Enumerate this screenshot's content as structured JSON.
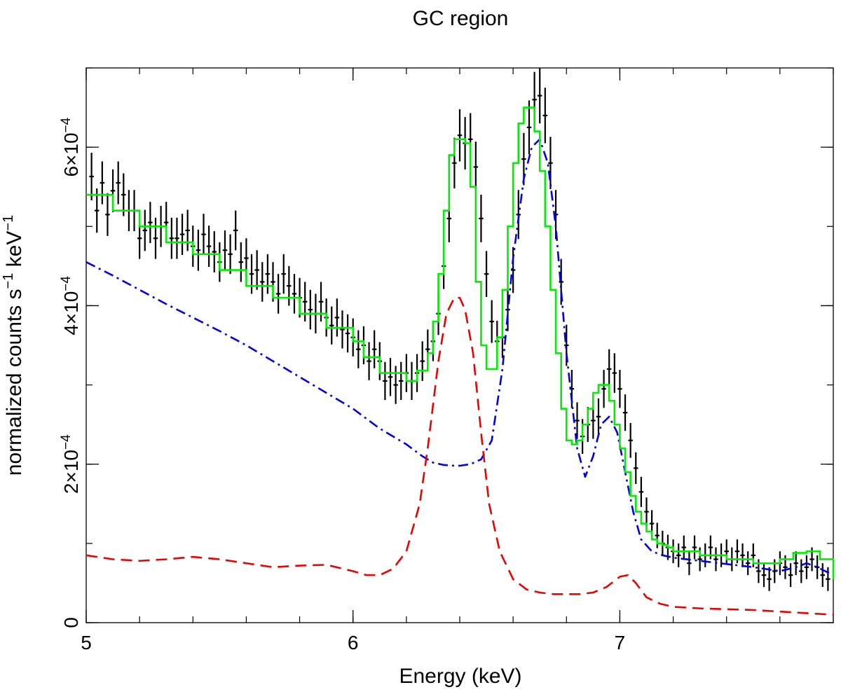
{
  "chart_data": {
    "type": "line",
    "title": "GC region",
    "xlabel": "Energy (keV)",
    "ylabel": "normalized counts s",
    "ylabel_sup1": "−1",
    "ylabel_mid": " keV",
    "ylabel_sup2": "−1",
    "xlim": [
      5.0,
      7.8
    ],
    "ylim": [
      0,
      0.0007
    ],
    "x_ticks": [
      {
        "value": 5,
        "label": "5"
      },
      {
        "value": 6,
        "label": "6"
      },
      {
        "value": 7,
        "label": "7"
      }
    ],
    "x_minor_step": 0.2,
    "y_ticks": [
      {
        "value": 0,
        "label": "0",
        "exp": ""
      },
      {
        "value": 0.0002,
        "label": "2×10",
        "exp": "−4"
      },
      {
        "value": 0.0004,
        "label": "4×10",
        "exp": "−4"
      },
      {
        "value": 0.0006,
        "label": "6×10",
        "exp": "−4"
      }
    ],
    "y_minor_step": 0.0001,
    "colors": {
      "data": "#000000",
      "total_model": "#00ee00",
      "thermal_component": "#0000ee",
      "neutral_component": "#ee0000"
    },
    "series": [
      {
        "name": "data",
        "style": "errorbars",
        "xerr": 0.0085,
        "points": [
          [
            5.02,
            5.63,
            0.3
          ],
          [
            5.04,
            5.2,
            0.28
          ],
          [
            5.06,
            5.55,
            0.27
          ],
          [
            5.08,
            5.15,
            0.27
          ],
          [
            5.1,
            5.45,
            0.27
          ],
          [
            5.12,
            5.55,
            0.27
          ],
          [
            5.14,
            5.4,
            0.27
          ],
          [
            5.16,
            5.2,
            0.26
          ],
          [
            5.18,
            5.2,
            0.26
          ],
          [
            5.2,
            4.85,
            0.26
          ],
          [
            5.22,
            4.95,
            0.26
          ],
          [
            5.24,
            5.05,
            0.26
          ],
          [
            5.26,
            4.85,
            0.26
          ],
          [
            5.28,
            5.0,
            0.26
          ],
          [
            5.3,
            5.05,
            0.26
          ],
          [
            5.32,
            4.85,
            0.26
          ],
          [
            5.34,
            4.85,
            0.26
          ],
          [
            5.36,
            4.9,
            0.26
          ],
          [
            5.38,
            4.95,
            0.26
          ],
          [
            5.4,
            4.75,
            0.26
          ],
          [
            5.42,
            4.7,
            0.26
          ],
          [
            5.44,
            4.9,
            0.26
          ],
          [
            5.46,
            4.75,
            0.26
          ],
          [
            5.48,
            4.68,
            0.26
          ],
          [
            5.5,
            4.55,
            0.25
          ],
          [
            5.52,
            4.7,
            0.25
          ],
          [
            5.54,
            4.65,
            0.25
          ],
          [
            5.56,
            4.95,
            0.25
          ],
          [
            5.58,
            4.55,
            0.25
          ],
          [
            5.6,
            4.6,
            0.25
          ],
          [
            5.62,
            4.4,
            0.25
          ],
          [
            5.64,
            4.45,
            0.25
          ],
          [
            5.66,
            4.3,
            0.25
          ],
          [
            5.68,
            4.4,
            0.25
          ],
          [
            5.7,
            4.3,
            0.25
          ],
          [
            5.72,
            4.15,
            0.25
          ],
          [
            5.74,
            4.4,
            0.25
          ],
          [
            5.76,
            4.25,
            0.25
          ],
          [
            5.78,
            4.15,
            0.25
          ],
          [
            5.8,
            4.1,
            0.25
          ],
          [
            5.82,
            4.05,
            0.25
          ],
          [
            5.84,
            3.95,
            0.25
          ],
          [
            5.86,
            3.9,
            0.25
          ],
          [
            5.88,
            4.05,
            0.25
          ],
          [
            5.9,
            3.85,
            0.24
          ],
          [
            5.92,
            3.75,
            0.24
          ],
          [
            5.94,
            3.85,
            0.24
          ],
          [
            5.96,
            3.7,
            0.24
          ],
          [
            5.98,
            3.65,
            0.24
          ],
          [
            6.0,
            3.6,
            0.24
          ],
          [
            6.02,
            3.45,
            0.24
          ],
          [
            6.04,
            3.5,
            0.24
          ],
          [
            6.06,
            3.3,
            0.24
          ],
          [
            6.08,
            3.45,
            0.24
          ],
          [
            6.1,
            3.3,
            0.24
          ],
          [
            6.12,
            3.05,
            0.24
          ],
          [
            6.14,
            3.1,
            0.24
          ],
          [
            6.16,
            3.0,
            0.24
          ],
          [
            6.18,
            3.05,
            0.24
          ],
          [
            6.2,
            3.15,
            0.24
          ],
          [
            6.22,
            3.05,
            0.24
          ],
          [
            6.24,
            3.15,
            0.24
          ],
          [
            6.26,
            3.3,
            0.25
          ],
          [
            6.28,
            3.45,
            0.25
          ],
          [
            6.3,
            3.55,
            0.25
          ],
          [
            6.32,
            3.9,
            0.27
          ],
          [
            6.34,
            4.5,
            0.29
          ],
          [
            6.36,
            5.1,
            0.3
          ],
          [
            6.38,
            5.8,
            0.32
          ],
          [
            6.4,
            6.15,
            0.33
          ],
          [
            6.42,
            6.05,
            0.33
          ],
          [
            6.44,
            6.1,
            0.33
          ],
          [
            6.46,
            5.75,
            0.32
          ],
          [
            6.48,
            5.1,
            0.3
          ],
          [
            6.5,
            4.4,
            0.29
          ],
          [
            6.52,
            3.8,
            0.27
          ],
          [
            6.54,
            3.55,
            0.26
          ],
          [
            6.56,
            3.6,
            0.26
          ],
          [
            6.58,
            3.95,
            0.27
          ],
          [
            6.6,
            4.45,
            0.29
          ],
          [
            6.62,
            5.15,
            0.31
          ],
          [
            6.64,
            5.85,
            0.33
          ],
          [
            6.66,
            6.25,
            0.34
          ],
          [
            6.68,
            6.6,
            0.35
          ],
          [
            6.7,
            6.65,
            0.35
          ],
          [
            6.72,
            6.4,
            0.35
          ],
          [
            6.74,
            5.8,
            0.33
          ],
          [
            6.76,
            5.15,
            0.31
          ],
          [
            6.78,
            4.3,
            0.29
          ],
          [
            6.8,
            3.5,
            0.26
          ],
          [
            6.82,
            2.95,
            0.24
          ],
          [
            6.84,
            2.55,
            0.23
          ],
          [
            6.86,
            2.35,
            0.22
          ],
          [
            6.88,
            2.5,
            0.22
          ],
          [
            6.9,
            2.55,
            0.23
          ],
          [
            6.92,
            2.6,
            0.23
          ],
          [
            6.94,
            2.95,
            0.24
          ],
          [
            6.96,
            3.2,
            0.25
          ],
          [
            6.98,
            3.15,
            0.25
          ],
          [
            7.0,
            2.95,
            0.24
          ],
          [
            7.02,
            2.65,
            0.23
          ],
          [
            7.04,
            2.3,
            0.22
          ],
          [
            7.06,
            1.95,
            0.2
          ],
          [
            7.08,
            1.65,
            0.19
          ],
          [
            7.1,
            1.4,
            0.18
          ],
          [
            7.12,
            1.25,
            0.17
          ],
          [
            7.14,
            1.1,
            0.16
          ],
          [
            7.16,
            1.0,
            0.16
          ],
          [
            7.18,
            0.95,
            0.16
          ],
          [
            7.2,
            0.9,
            0.15
          ],
          [
            7.22,
            0.85,
            0.15
          ],
          [
            7.24,
            0.95,
            0.15
          ],
          [
            7.26,
            0.75,
            0.15
          ],
          [
            7.28,
            0.95,
            0.15
          ],
          [
            7.3,
            0.8,
            0.15
          ],
          [
            7.32,
            0.85,
            0.15
          ],
          [
            7.34,
            0.95,
            0.15
          ],
          [
            7.36,
            0.8,
            0.15
          ],
          [
            7.38,
            0.85,
            0.15
          ],
          [
            7.4,
            0.9,
            0.15
          ],
          [
            7.42,
            0.8,
            0.15
          ],
          [
            7.44,
            0.9,
            0.15
          ],
          [
            7.46,
            0.85,
            0.15
          ],
          [
            7.48,
            0.75,
            0.15
          ],
          [
            7.5,
            0.85,
            0.15
          ],
          [
            7.52,
            0.65,
            0.15
          ],
          [
            7.54,
            0.6,
            0.15
          ],
          [
            7.56,
            0.55,
            0.15
          ],
          [
            7.58,
            0.65,
            0.15
          ],
          [
            7.6,
            0.75,
            0.15
          ],
          [
            7.62,
            0.7,
            0.15
          ],
          [
            7.64,
            0.6,
            0.15
          ],
          [
            7.66,
            0.75,
            0.15
          ],
          [
            7.68,
            0.65,
            0.15
          ],
          [
            7.7,
            0.7,
            0.15
          ],
          [
            7.72,
            0.8,
            0.15
          ],
          [
            7.74,
            0.7,
            0.15
          ],
          [
            7.76,
            0.6,
            0.15
          ],
          [
            7.78,
            0.55,
            0.15
          ]
        ]
      },
      {
        "name": "total_model",
        "style": "step",
        "x": [
          5.0,
          5.1,
          5.2,
          5.3,
          5.4,
          5.5,
          5.6,
          5.7,
          5.8,
          5.9,
          6.0,
          6.04,
          6.1,
          6.2,
          6.24,
          6.28,
          6.3,
          6.32,
          6.34,
          6.36,
          6.38,
          6.4,
          6.42,
          6.44,
          6.46,
          6.48,
          6.5,
          6.52,
          6.54,
          6.56,
          6.58,
          6.6,
          6.62,
          6.64,
          6.66,
          6.68,
          6.7,
          6.72,
          6.74,
          6.76,
          6.78,
          6.8,
          6.82,
          6.84,
          6.86,
          6.88,
          6.9,
          6.92,
          6.94,
          6.96,
          6.98,
          7.0,
          7.02,
          7.04,
          7.06,
          7.08,
          7.1,
          7.12,
          7.14,
          7.16,
          7.18,
          7.2,
          7.3,
          7.4,
          7.5,
          7.55,
          7.6,
          7.65,
          7.7,
          7.75,
          7.8
        ],
        "y": [
          5.4,
          5.2,
          5.0,
          4.8,
          4.65,
          4.45,
          4.25,
          4.1,
          3.9,
          3.72,
          3.55,
          3.35,
          3.15,
          3.05,
          3.18,
          3.4,
          3.8,
          4.4,
          5.2,
          5.9,
          6.1,
          6.1,
          6.05,
          5.5,
          4.3,
          3.5,
          3.2,
          3.2,
          3.6,
          4.2,
          5.0,
          5.8,
          6.3,
          6.5,
          6.5,
          6.2,
          5.7,
          5.0,
          4.2,
          3.4,
          2.7,
          2.3,
          2.25,
          2.3,
          2.5,
          2.7,
          2.9,
          3.0,
          3.0,
          2.8,
          2.5,
          2.2,
          1.9,
          1.6,
          1.4,
          1.25,
          1.15,
          1.05,
          1.0,
          0.98,
          0.95,
          0.9,
          0.85,
          0.8,
          0.75,
          0.75,
          0.8,
          0.88,
          0.9,
          0.8,
          0.55
        ]
      },
      {
        "name": "thermal_component",
        "style": "dashdot",
        "x": [
          5.0,
          5.1,
          5.2,
          5.3,
          5.4,
          5.5,
          5.6,
          5.7,
          5.8,
          5.9,
          6.0,
          6.1,
          6.2,
          6.26,
          6.3,
          6.34,
          6.38,
          6.4,
          6.44,
          6.48,
          6.52,
          6.56,
          6.6,
          6.64,
          6.67,
          6.7,
          6.73,
          6.76,
          6.8,
          6.84,
          6.87,
          6.9,
          6.93,
          6.96,
          6.99,
          7.02,
          7.05,
          7.08,
          7.12,
          7.16,
          7.2,
          7.3,
          7.4,
          7.5,
          7.6,
          7.66,
          7.7,
          7.74,
          7.8
        ],
        "y": [
          4.55,
          4.38,
          4.2,
          4.02,
          3.85,
          3.68,
          3.5,
          3.3,
          3.1,
          2.9,
          2.7,
          2.45,
          2.25,
          2.1,
          2.02,
          1.99,
          1.98,
          1.98,
          2.0,
          2.06,
          2.3,
          3.2,
          4.6,
          5.6,
          6.0,
          6.1,
          5.8,
          5.0,
          3.4,
          2.2,
          1.84,
          2.1,
          2.5,
          2.6,
          2.4,
          1.9,
          1.4,
          1.05,
          0.9,
          0.85,
          0.82,
          0.78,
          0.74,
          0.7,
          0.65,
          0.7,
          0.75,
          0.7,
          0.6
        ]
      },
      {
        "name": "neutral_component",
        "style": "dashed",
        "x": [
          5.0,
          5.1,
          5.2,
          5.3,
          5.4,
          5.5,
          5.6,
          5.7,
          5.8,
          5.9,
          6.0,
          6.05,
          6.1,
          6.15,
          6.2,
          6.25,
          6.28,
          6.32,
          6.35,
          6.38,
          6.4,
          6.42,
          6.45,
          6.48,
          6.51,
          6.55,
          6.6,
          6.65,
          6.7,
          6.75,
          6.8,
          6.85,
          6.9,
          6.95,
          7.0,
          7.03,
          7.06,
          7.1,
          7.15,
          7.2,
          7.3,
          7.4,
          7.5,
          7.6,
          7.7,
          7.8
        ],
        "y": [
          0.85,
          0.8,
          0.78,
          0.8,
          0.83,
          0.8,
          0.75,
          0.7,
          0.72,
          0.73,
          0.65,
          0.6,
          0.6,
          0.68,
          0.9,
          1.5,
          2.2,
          3.3,
          3.9,
          4.1,
          4.1,
          3.95,
          3.4,
          2.4,
          1.5,
          0.9,
          0.55,
          0.42,
          0.38,
          0.36,
          0.36,
          0.36,
          0.38,
          0.45,
          0.58,
          0.6,
          0.5,
          0.32,
          0.24,
          0.2,
          0.18,
          0.17,
          0.16,
          0.14,
          0.12,
          0.1
        ]
      }
    ],
    "y_scale_factor": 0.0001
  }
}
